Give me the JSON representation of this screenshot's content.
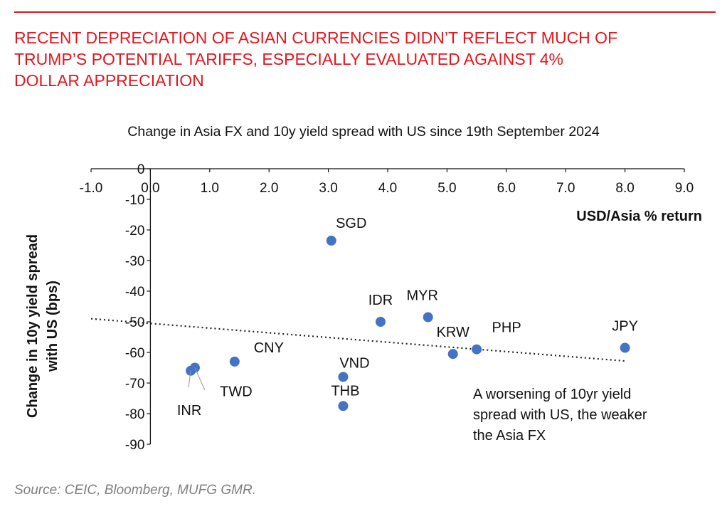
{
  "headline": {
    "line1": "RECENT DEPRECIATION OF ASIAN CURRENCIES DIDN’T REFLECT MUCH OF",
    "line2": "TRUMP’S POTENTIAL TARIFFS, ESPECIALLY EVALUATED AGAINST 4%",
    "line3": "DOLLAR APPRECIATION"
  },
  "source": "Source: CEIC, Bloomberg, MUFG GMR.",
  "colors": {
    "headline": "#e8141b",
    "marker": "#4472c4",
    "source": "#7f7f7f"
  },
  "chart_data": {
    "type": "scatter",
    "title": "Change in Asia FX and 10y yield spread with US since 19th September 2024",
    "xlabel": "USD/Asia % return",
    "ylabel_line1": "Change in 10y yield spread",
    "ylabel_line2": "with US (bps)",
    "xlim": [
      -1.0,
      9.0
    ],
    "ylim": [
      -90,
      0
    ],
    "x_ticks": [
      "-1.0",
      "0.0",
      "1.0",
      "2.0",
      "3.0",
      "4.0",
      "5.0",
      "6.0",
      "7.0",
      "8.0",
      "9.0"
    ],
    "y_ticks": [
      "0",
      "-10",
      "-20",
      "-30",
      "-40",
      "-50",
      "-60",
      "-70",
      "-80",
      "-90"
    ],
    "grid": false,
    "legend": "none",
    "points": [
      {
        "label": "SGD",
        "x": 3.05,
        "y": -23.5
      },
      {
        "label": "IDR",
        "x": 3.88,
        "y": -50.0
      },
      {
        "label": "MYR",
        "x": 4.68,
        "y": -48.5
      },
      {
        "label": "KRW",
        "x": 5.1,
        "y": -60.5
      },
      {
        "label": "PHP",
        "x": 5.5,
        "y": -59.0
      },
      {
        "label": "JPY",
        "x": 8.0,
        "y": -58.5
      },
      {
        "label": "CNY",
        "x": 1.42,
        "y": -63.0
      },
      {
        "label": "VND",
        "x": 3.25,
        "y": -68.0
      },
      {
        "label": "THB",
        "x": 3.25,
        "y": -77.5
      },
      {
        "label": "TWD",
        "x": 0.75,
        "y": -65.0
      },
      {
        "label": "INR",
        "x": 0.68,
        "y": -66.0
      }
    ],
    "trendline": {
      "x": [
        -1.0,
        8.0
      ],
      "y": [
        -49.0,
        -62.8
      ]
    },
    "annotation": {
      "line1": "A worsening of 10yr yield",
      "line2": "spread with US, the weaker",
      "line3": "the Asia FX"
    }
  }
}
